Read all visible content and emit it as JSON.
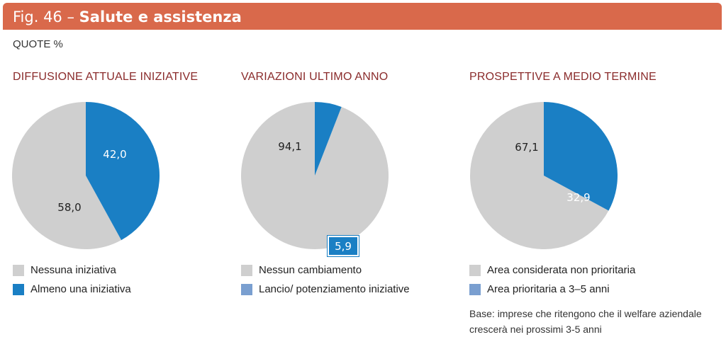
{
  "header": {
    "fig_number": "Fig. 46 –",
    "title": "Salute e assistenza"
  },
  "subtitle": "QUOTE %",
  "colors": {
    "grey": "#cfcfcf",
    "blue": "#1a7fc4",
    "blue_light": "#7a9fd0",
    "header": "#d9694b",
    "title": "#8a2b2b"
  },
  "panels": [
    {
      "title": "DIFFUSIONE ATTUALE INIZIATIVE",
      "legend": [
        "Nessuna iniziativa",
        "Almeno una iniziativa"
      ]
    },
    {
      "title": "VARIAZIONI ULTIMO ANNO",
      "legend": [
        "Nessun cambiamento",
        "Lancio/ potenziamento iniziative"
      ]
    },
    {
      "title": "PROSPETTIVE A MEDIO TERMINE",
      "legend": [
        "Area considerata non prioritaria",
        "Area prioritaria a 3–5 anni"
      ]
    }
  ],
  "labels": {
    "p1_grey": "58,0",
    "p1_blue": "42,0",
    "p2_grey": "94,1",
    "p2_blue": "5,9",
    "p3_grey": "67,1",
    "p3_blue": "32,9"
  },
  "base_note": "Base: imprese che ritengono che il welfare aziendale crescerà nei prossimi 3-5 anni",
  "chart_data": [
    {
      "type": "pie",
      "title": "DIFFUSIONE ATTUALE INIZIATIVE",
      "series": [
        {
          "name": "Almeno una iniziativa",
          "value": 42.0
        },
        {
          "name": "Nessuna iniziativa",
          "value": 58.0
        }
      ]
    },
    {
      "type": "pie",
      "title": "VARIAZIONI ULTIMO ANNO",
      "series": [
        {
          "name": "Lancio/ potenziamento iniziative",
          "value": 5.9
        },
        {
          "name": "Nessun cambiamento",
          "value": 94.1
        }
      ]
    },
    {
      "type": "pie",
      "title": "PROSPETTIVE A MEDIO TERMINE",
      "series": [
        {
          "name": "Area prioritaria a 3–5 anni",
          "value": 32.9
        },
        {
          "name": "Area considerata non prioritaria",
          "value": 67.1
        }
      ]
    }
  ]
}
